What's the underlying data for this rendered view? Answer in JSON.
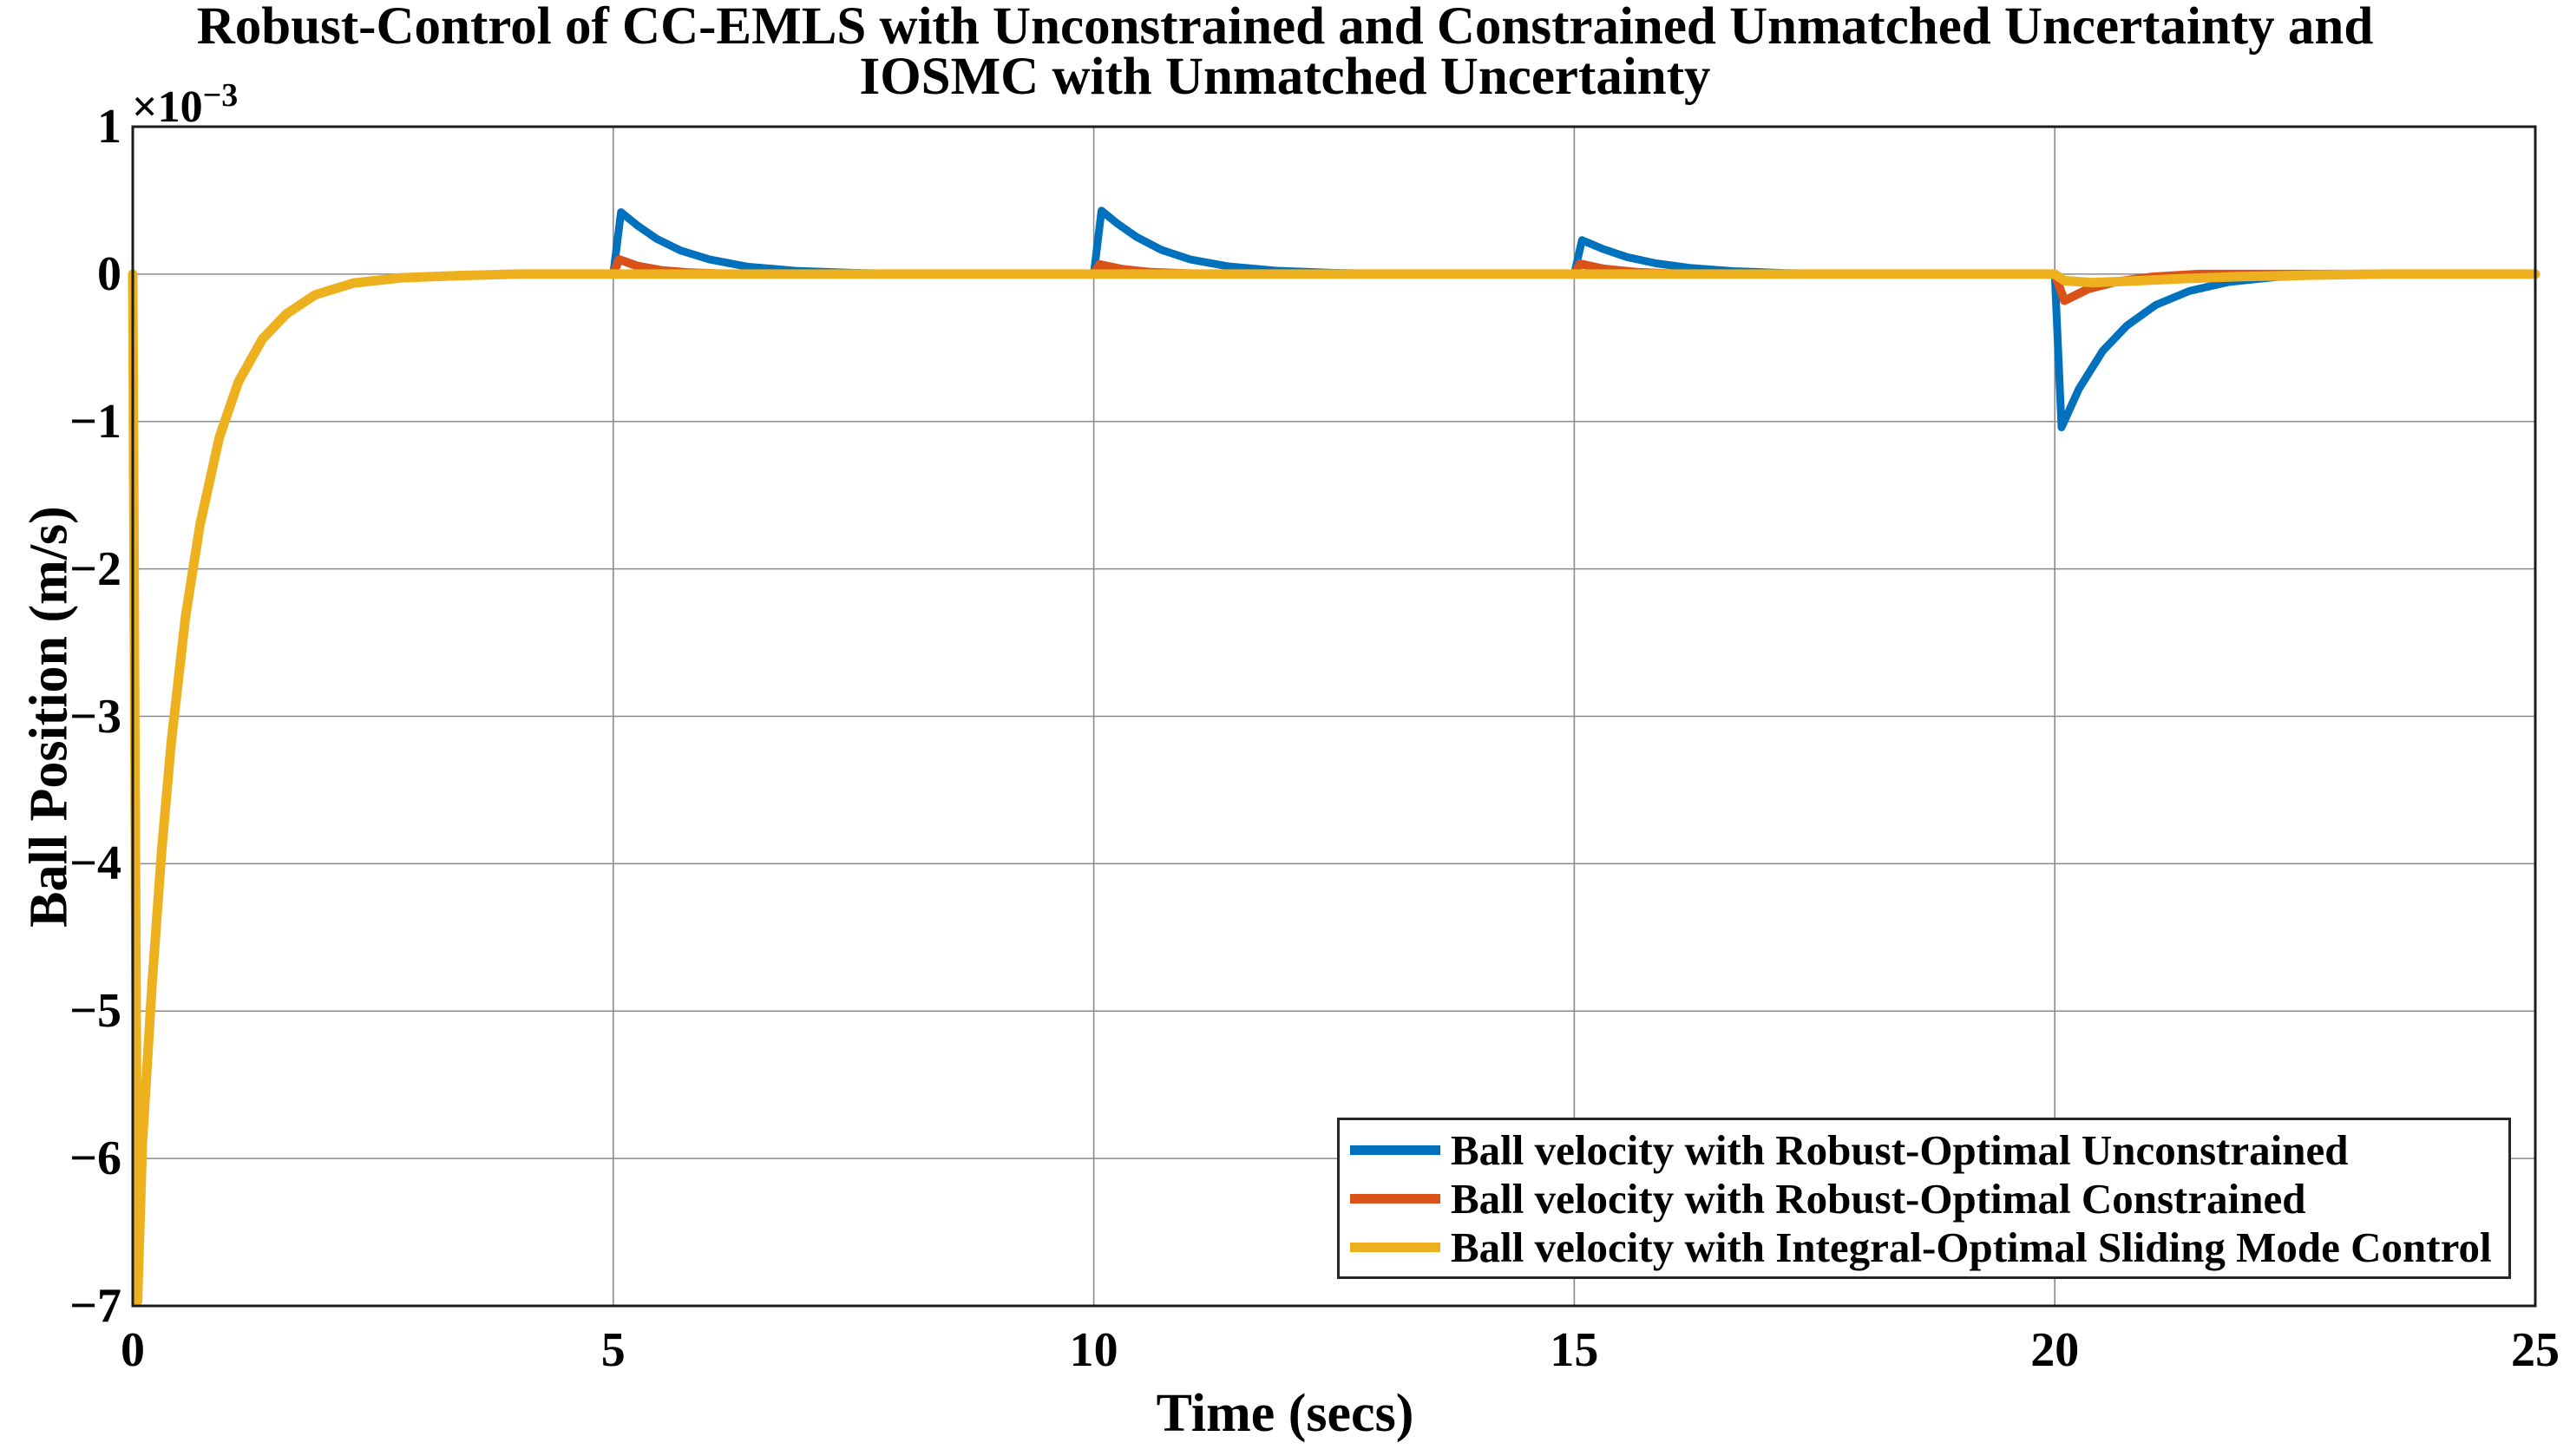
{
  "figure": {
    "title_line1": "Robust-Control of CC-EMLS with Unconstrained and Constrained Unmatched Uncertainty and",
    "title_line2": "IOSMC with Unmatched Uncertainty",
    "xlabel": "Time (secs)",
    "ylabel": "Ball Position (m/s)",
    "y_offset_base": "×10",
    "y_offset_exp": "−3"
  },
  "colors": {
    "series_blue": "#0072BD",
    "series_orange": "#D95319",
    "series_yellow": "#EDB120",
    "gridline": "#8a8a8a",
    "axes_border": "#1c1c1c",
    "text": "#000000",
    "legend_border": "#262626",
    "background": "#ffffff"
  },
  "chart_data": {
    "type": "line",
    "title": "Robust-Control of CC-EMLS with Unconstrained and Constrained Unmatched Uncertainty and IOSMC with Unmatched Uncertainty",
    "xlabel": "Time (secs)",
    "ylabel": "Ball Position (m/s)",
    "y_units": "×10⁻³",
    "xlim": [
      0,
      25
    ],
    "ylim": [
      -7,
      1
    ],
    "grid": true,
    "legend_position": "south-east-inside",
    "x_ticks": [
      {
        "v": 0,
        "label": "0"
      },
      {
        "v": 5,
        "label": "5"
      },
      {
        "v": 10,
        "label": "10"
      },
      {
        "v": 15,
        "label": "15"
      },
      {
        "v": 20,
        "label": "20"
      },
      {
        "v": 25,
        "label": "25"
      }
    ],
    "y_ticks": [
      {
        "v": 1,
        "label": "1"
      },
      {
        "v": 0,
        "label": "0"
      },
      {
        "v": -1,
        "label": "−1"
      },
      {
        "v": -2,
        "label": "−2"
      },
      {
        "v": -3,
        "label": "−3"
      },
      {
        "v": -4,
        "label": "−4"
      },
      {
        "v": -5,
        "label": "−5"
      },
      {
        "v": -6,
        "label": "−6"
      },
      {
        "v": -7,
        "label": "−7"
      }
    ],
    "series": [
      {
        "name": "Ball velocity with Robust-Optimal Unconstrained",
        "color": "#0072BD",
        "points": [
          [
            0,
            0
          ],
          [
            0.05,
            -6.97
          ],
          [
            0.1,
            -5.9
          ],
          [
            0.2,
            -4.82
          ],
          [
            0.3,
            -3.92
          ],
          [
            0.4,
            -3.18
          ],
          [
            0.55,
            -2.32
          ],
          [
            0.7,
            -1.7
          ],
          [
            0.9,
            -1.11
          ],
          [
            1.1,
            -0.73
          ],
          [
            1.35,
            -0.44
          ],
          [
            1.6,
            -0.27
          ],
          [
            1.9,
            -0.14
          ],
          [
            2.3,
            -0.06
          ],
          [
            2.8,
            -0.025
          ],
          [
            3.4,
            -0.01
          ],
          [
            4,
            0
          ],
          [
            5,
            0
          ],
          [
            5.08,
            0.42
          ],
          [
            5.25,
            0.33
          ],
          [
            5.45,
            0.24
          ],
          [
            5.7,
            0.16
          ],
          [
            6,
            0.1
          ],
          [
            6.4,
            0.05
          ],
          [
            6.9,
            0.022
          ],
          [
            7.5,
            0.008
          ],
          [
            8.2,
            0
          ],
          [
            10,
            0
          ],
          [
            10.08,
            0.43
          ],
          [
            10.25,
            0.34
          ],
          [
            10.45,
            0.25
          ],
          [
            10.7,
            0.165
          ],
          [
            11,
            0.1
          ],
          [
            11.4,
            0.052
          ],
          [
            11.9,
            0.023
          ],
          [
            12.5,
            0.008
          ],
          [
            13.2,
            0
          ],
          [
            15,
            0
          ],
          [
            15.08,
            0.23
          ],
          [
            15.3,
            0.17
          ],
          [
            15.55,
            0.115
          ],
          [
            15.85,
            0.073
          ],
          [
            16.2,
            0.042
          ],
          [
            16.65,
            0.02
          ],
          [
            17.2,
            0.007
          ],
          [
            17.9,
            0
          ],
          [
            20,
            0
          ],
          [
            20.07,
            -1.04
          ],
          [
            20.25,
            -0.78
          ],
          [
            20.5,
            -0.52
          ],
          [
            20.75,
            -0.35
          ],
          [
            21.05,
            -0.21
          ],
          [
            21.4,
            -0.115
          ],
          [
            21.8,
            -0.055
          ],
          [
            22.3,
            -0.02
          ],
          [
            22.9,
            -0.005
          ],
          [
            23.5,
            0
          ],
          [
            25,
            0
          ]
        ]
      },
      {
        "name": "Ball velocity with Robust-Optimal Constrained",
        "color": "#D95319",
        "points": [
          [
            0,
            0
          ],
          [
            0.05,
            -6.97
          ],
          [
            0.1,
            -5.9
          ],
          [
            0.2,
            -4.82
          ],
          [
            0.3,
            -3.92
          ],
          [
            0.4,
            -3.18
          ],
          [
            0.55,
            -2.32
          ],
          [
            0.7,
            -1.7
          ],
          [
            0.9,
            -1.11
          ],
          [
            1.1,
            -0.73
          ],
          [
            1.35,
            -0.44
          ],
          [
            1.6,
            -0.27
          ],
          [
            1.9,
            -0.14
          ],
          [
            2.3,
            -0.06
          ],
          [
            2.8,
            -0.025
          ],
          [
            3.4,
            -0.01
          ],
          [
            4,
            0
          ],
          [
            5,
            0
          ],
          [
            5.06,
            0.1
          ],
          [
            5.25,
            0.055
          ],
          [
            5.5,
            0.025
          ],
          [
            5.8,
            0.009
          ],
          [
            6.2,
            0
          ],
          [
            10,
            0
          ],
          [
            10.06,
            0.065
          ],
          [
            10.3,
            0.032
          ],
          [
            10.6,
            0.012
          ],
          [
            11.1,
            0
          ],
          [
            15,
            0
          ],
          [
            15.06,
            0.07
          ],
          [
            15.3,
            0.036
          ],
          [
            15.65,
            0.013
          ],
          [
            16.1,
            0
          ],
          [
            20,
            0
          ],
          [
            20.1,
            -0.18
          ],
          [
            20.35,
            -0.1
          ],
          [
            20.65,
            -0.05
          ],
          [
            21,
            -0.02
          ],
          [
            21.5,
            0
          ],
          [
            25,
            0
          ]
        ]
      },
      {
        "name": "Ball velocity with Integral-Optimal Sliding Mode Control",
        "color": "#EDB120",
        "points": [
          [
            0,
            0
          ],
          [
            0.05,
            -6.97
          ],
          [
            0.1,
            -5.9
          ],
          [
            0.2,
            -4.82
          ],
          [
            0.3,
            -3.92
          ],
          [
            0.4,
            -3.18
          ],
          [
            0.55,
            -2.32
          ],
          [
            0.7,
            -1.7
          ],
          [
            0.9,
            -1.11
          ],
          [
            1.1,
            -0.73
          ],
          [
            1.35,
            -0.44
          ],
          [
            1.6,
            -0.27
          ],
          [
            1.9,
            -0.14
          ],
          [
            2.3,
            -0.06
          ],
          [
            2.8,
            -0.025
          ],
          [
            3.4,
            -0.01
          ],
          [
            4,
            0
          ],
          [
            20,
            0
          ],
          [
            20.1,
            -0.045
          ],
          [
            20.4,
            -0.058
          ],
          [
            20.8,
            -0.047
          ],
          [
            21.3,
            -0.032
          ],
          [
            21.9,
            -0.018
          ],
          [
            22.6,
            -0.008
          ],
          [
            23.4,
            0
          ],
          [
            25,
            0
          ]
        ]
      }
    ]
  }
}
